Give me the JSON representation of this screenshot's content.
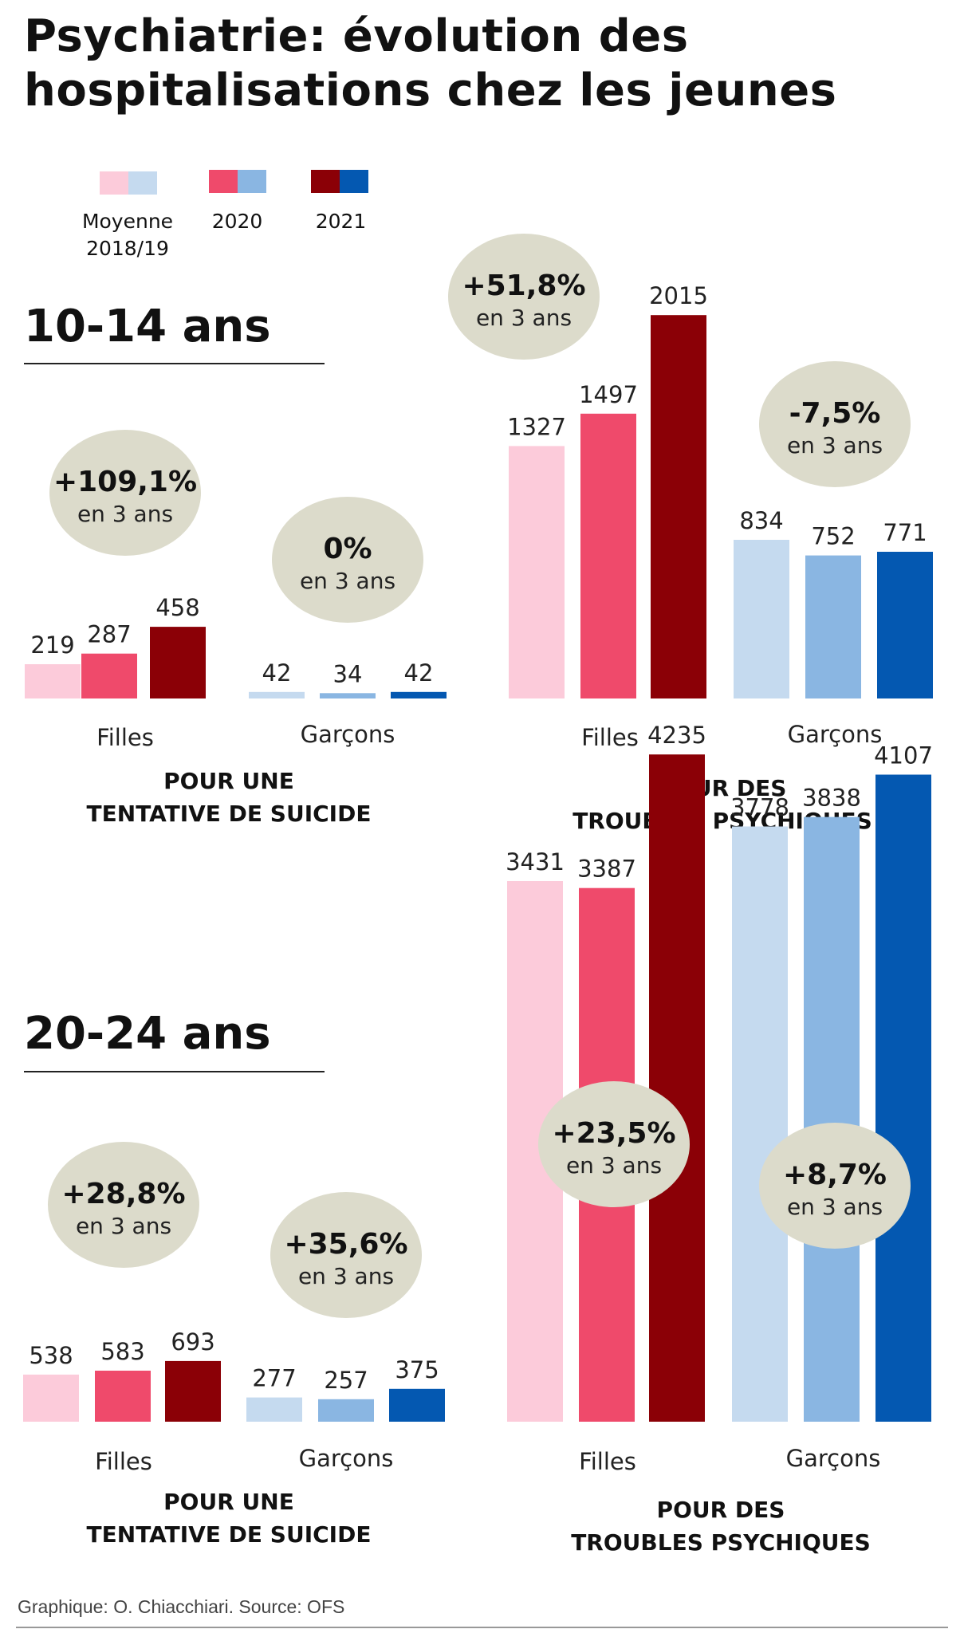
{
  "title": "Psychiatrie: évolution des hospitalisations chez les jeunes",
  "legend": [
    {
      "label_line1": "Moyenne",
      "label_line2": "2018/19",
      "color_girls": "#fccbda",
      "color_boys": "#c5daef"
    },
    {
      "label_line1": "2020",
      "label_line2": "",
      "color_girls": "#ef4a6b",
      "color_boys": "#8ab6e2"
    },
    {
      "label_line1": "2021",
      "label_line2": "",
      "color_girls": "#8b0006",
      "color_boys": "#0458b1"
    }
  ],
  "colors": {
    "girls": [
      "#fccbda",
      "#ef4a6b",
      "#8b0006"
    ],
    "boys": [
      "#c5daef",
      "#8ab6e2",
      "#0458b1"
    ],
    "bubble": "#dcdbcb"
  },
  "sections": [
    {
      "heading": "10-14 ans"
    },
    {
      "heading": "20-24 ans"
    }
  ],
  "chart_data": [
    {
      "type": "bar",
      "section": "10-14 ans",
      "title_line1": "POUR  UNE",
      "title_line2": "TENTATIVE DE SUICIDE",
      "categories": [
        "Filles",
        "Garçons"
      ],
      "series": [
        {
          "name": "Moyenne 2018/19",
          "values": [
            219,
            42
          ]
        },
        {
          "name": "2020",
          "values": [
            287,
            34
          ]
        },
        {
          "name": "2021",
          "values": [
            458,
            42
          ]
        }
      ],
      "annotations": [
        {
          "group": "Filles",
          "value": "+109,1%",
          "sub": "en 3 ans"
        },
        {
          "group": "Garçons",
          "value": "0%",
          "sub": "en 3 ans"
        }
      ]
    },
    {
      "type": "bar",
      "section": "10-14 ans",
      "title_line1": "POUR DES",
      "title_line2": "TROUBLES PSYCHIQUES",
      "categories": [
        "Filles",
        "Garçons"
      ],
      "series": [
        {
          "name": "Moyenne 2018/19",
          "values": [
            1327,
            834
          ]
        },
        {
          "name": "2020",
          "values": [
            1497,
            752
          ]
        },
        {
          "name": "2021",
          "values": [
            2015,
            771
          ]
        }
      ],
      "annotations": [
        {
          "group": "Filles",
          "value": "+51,8%",
          "sub": "en 3 ans"
        },
        {
          "group": "Garçons",
          "value": "-7,5%",
          "sub": "en 3 ans"
        }
      ]
    },
    {
      "type": "bar",
      "section": "20-24 ans",
      "title_line1": "POUR  UNE",
      "title_line2": "TENTATIVE DE SUICIDE",
      "categories": [
        "Filles",
        "Garçons"
      ],
      "series": [
        {
          "name": "Moyenne 2018/19",
          "values": [
            538,
            277
          ]
        },
        {
          "name": "2020",
          "values": [
            583,
            257
          ]
        },
        {
          "name": "2021",
          "values": [
            693,
            375
          ]
        }
      ],
      "annotations": [
        {
          "group": "Filles",
          "value": "+28,8%",
          "sub": "en 3 ans"
        },
        {
          "group": "Garçons",
          "value": "+35,6%",
          "sub": "en 3 ans"
        }
      ]
    },
    {
      "type": "bar",
      "section": "20-24 ans",
      "title_line1": "POUR DES",
      "title_line2": "TROUBLES PSYCHIQUES",
      "categories": [
        "Filles",
        "Garçons"
      ],
      "series": [
        {
          "name": "Moyenne 2018/19",
          "values": [
            3431,
            3778
          ]
        },
        {
          "name": "2020",
          "values": [
            3387,
            3838
          ]
        },
        {
          "name": "2021",
          "values": [
            4235,
            4107
          ]
        }
      ],
      "annotations": [
        {
          "group": "Filles",
          "value": "+23,5%",
          "sub": "en 3 ans"
        },
        {
          "group": "Garçons",
          "value": "+8,7%",
          "sub": "en 3 ans"
        }
      ]
    }
  ],
  "footer": "Graphique: O. Chiacchiari. Source: OFS"
}
